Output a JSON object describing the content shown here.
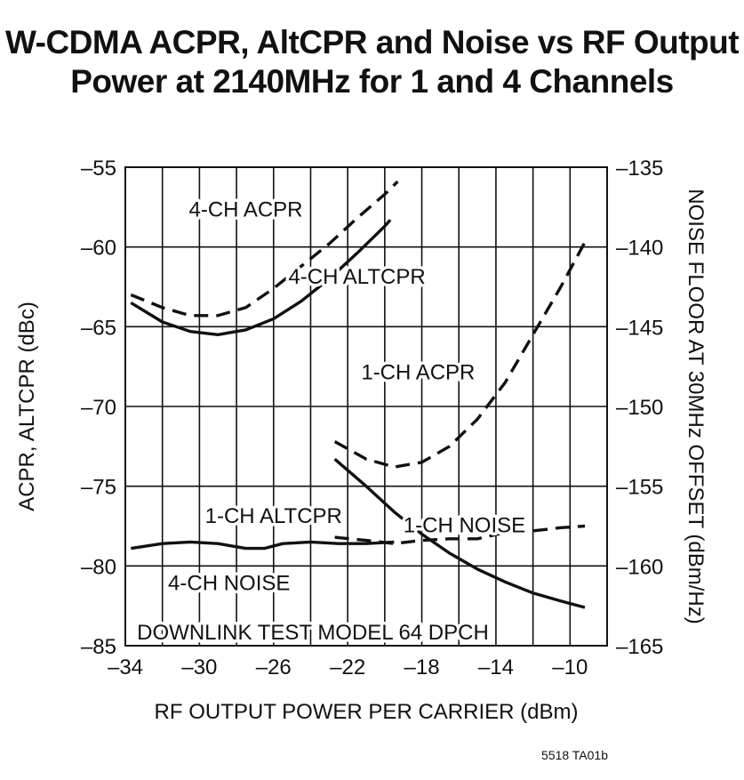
{
  "title_line1": "W-CDMA ACPR, AltCPR and Noise vs RF Output",
  "title_line2": "Power at 2140MHz for 1 and 4 Channels",
  "figure_code": "5518 TA01b",
  "chart_data": {
    "type": "line",
    "xlabel": "RF OUTPUT POWER PER CARRIER (dBm)",
    "ylabel": "ACPR, ALTCPR (dBc)",
    "y2label": "NOISE FLOOR AT 30MHz OFFSET (dBm/Hz)",
    "xlim": [
      -34,
      -8
    ],
    "ylim": [
      -85,
      -55
    ],
    "y2lim": [
      -165,
      -135
    ],
    "x_ticks": [
      -34,
      -30,
      -26,
      -22,
      -18,
      -14,
      -10
    ],
    "x_tick_labels": [
      "–34",
      "–30",
      "–26",
      "–22",
      "–18",
      "–14",
      "–10"
    ],
    "y_ticks": [
      -55,
      -60,
      -65,
      -70,
      -75,
      -80,
      -85
    ],
    "y_tick_labels": [
      "–55",
      "–60",
      "–65",
      "–70",
      "–75",
      "–80",
      "–85"
    ],
    "y2_ticks": [
      -135,
      -140,
      -145,
      -150,
      -155,
      -160,
      -165
    ],
    "y2_tick_labels": [
      "–135",
      "–140",
      "–145",
      "–150",
      "–155",
      "–160",
      "–165"
    ],
    "grid": true,
    "annotation": "DOWNLINK TEST MODEL 64 DPCH",
    "series": [
      {
        "name": "4-CH ACPR",
        "style": "dashed",
        "axis": "left",
        "x": [
          -33.7,
          -32,
          -30.5,
          -29,
          -27.5,
          -26,
          -24.5,
          -23,
          -21.5,
          -20,
          -19.3
        ],
        "y": [
          -63.0,
          -63.8,
          -64.3,
          -64.3,
          -63.8,
          -62.6,
          -61.2,
          -59.8,
          -58.2,
          -56.7,
          -55.9
        ]
      },
      {
        "name": "4-CH ALTCPR",
        "style": "solid",
        "axis": "left",
        "x": [
          -33.7,
          -32,
          -30.5,
          -29,
          -27.5,
          -26,
          -24.5,
          -23,
          -21.5,
          -20,
          -19.7
        ],
        "y": [
          -63.5,
          -64.7,
          -65.3,
          -65.5,
          -65.2,
          -64.5,
          -63.4,
          -62.0,
          -60.4,
          -58.7,
          -58.3
        ]
      },
      {
        "name": "1-CH ACPR",
        "style": "dashed",
        "axis": "left",
        "x": [
          -22.7,
          -21,
          -19.5,
          -18,
          -16.5,
          -15,
          -13.5,
          -12,
          -10.5,
          -9.2
        ],
        "y": [
          -72.2,
          -73.3,
          -73.8,
          -73.5,
          -72.5,
          -70.8,
          -68.5,
          -65.5,
          -62.5,
          -59.7
        ]
      },
      {
        "name": "1-CH ALTCPR",
        "style": "solid",
        "axis": "left",
        "x": [
          -22.7,
          -21,
          -19.5,
          -18,
          -16.5,
          -15,
          -13.5,
          -12,
          -10.5,
          -9.2
        ],
        "y": [
          -73.3,
          -75.0,
          -76.6,
          -78.0,
          -79.2,
          -80.2,
          -81.0,
          -81.7,
          -82.2,
          -82.6
        ]
      },
      {
        "name": "1-CH NOISE",
        "style": "dashed",
        "axis": "right",
        "x": [
          -22.7,
          -21,
          -19.5,
          -18,
          -16.5,
          -15,
          -13.5,
          -12,
          -10.5,
          -9.2
        ],
        "y": [
          -158.2,
          -158.4,
          -158.6,
          -158.4,
          -158.3,
          -158.3,
          -157.9,
          -157.8,
          -157.6,
          -157.5
        ]
      },
      {
        "name": "4-CH NOISE",
        "style": "solid",
        "axis": "right",
        "x": [
          -33.7,
          -32,
          -30.5,
          -29,
          -27.5,
          -26.5,
          -25.5,
          -24,
          -22.5,
          -21,
          -19.5
        ],
        "y": [
          -158.9,
          -158.6,
          -158.5,
          -158.6,
          -158.9,
          -158.9,
          -158.6,
          -158.5,
          -158.6,
          -158.6,
          -158.5
        ]
      }
    ],
    "labels": [
      {
        "text": "4-CH ACPR",
        "x": -27.5,
        "y": -57.6
      },
      {
        "text": "4-CH ALTCPR",
        "x": -21.5,
        "y": -61.8
      },
      {
        "text": "1-CH ACPR",
        "x": -18.2,
        "y": -67.8
      },
      {
        "text": "1-CH ALTCPR",
        "x": -26.0,
        "y": -76.8
      },
      {
        "text": "1-CH NOISE",
        "x": -15.7,
        "y": -157.4,
        "axis": "right"
      },
      {
        "text": "4-CH NOISE",
        "x": -28.4,
        "y": -161.0,
        "axis": "right"
      }
    ]
  }
}
